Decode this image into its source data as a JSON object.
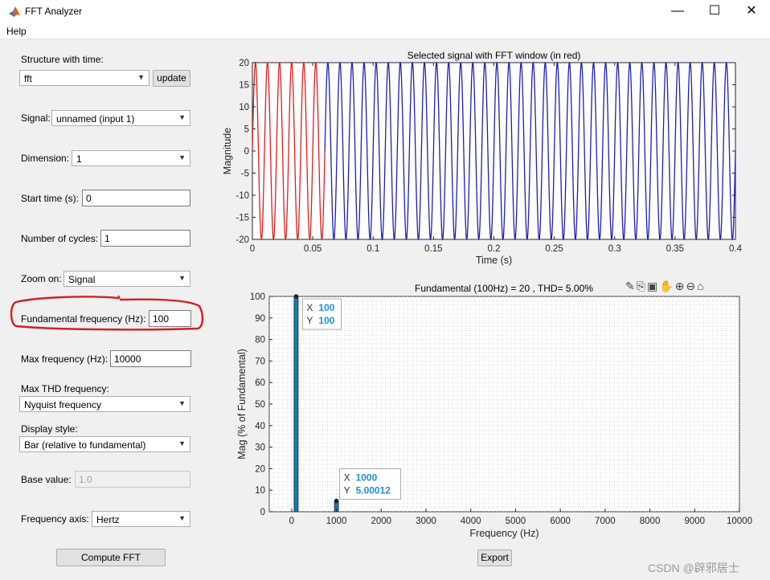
{
  "window": {
    "title": "FFT Analyzer"
  },
  "menu": {
    "help": "Help"
  },
  "panel": {
    "structure_label": "Structure with time:",
    "structure_value": "fft",
    "update_button": "update",
    "signal_label": "Signal:",
    "signal_value": "unnamed (input 1)",
    "dimension_label": "Dimension:",
    "dimension_value": "1",
    "start_time_label": "Start time (s):",
    "start_time_value": "0",
    "cycles_label": "Number of cycles:",
    "cycles_value": "1",
    "zoom_label": "Zoom on:",
    "zoom_value": "Signal",
    "fund_freq_label": "Fundamental frequency (Hz):",
    "fund_freq_value": "100",
    "max_freq_label": "Max frequency (Hz):",
    "max_freq_value": "10000",
    "max_thd_label": "Max THD frequency:",
    "max_thd_value": "Nyquist frequency",
    "display_style_label": "Display style:",
    "display_style_value": "Bar (relative to fundamental)",
    "base_value_label": "Base value:",
    "base_value_value": "1.0",
    "freq_axis_label": "Frequency axis:",
    "freq_axis_value": "Hertz",
    "compute_button": "Compute FFT",
    "export_button": "Export"
  },
  "highlight": {
    "color": "#d42020"
  },
  "watermark": "CSDN @辟邪居士",
  "chart_data": [
    {
      "type": "line",
      "title": "Selected signal with FFT window (in red)",
      "xlabel": "Time (s)",
      "ylabel": "Magnitude",
      "xlim": [
        0,
        0.4
      ],
      "ylim": [
        -20,
        20
      ],
      "xticks": [
        "0",
        "0.05",
        "0.1",
        "0.15",
        "0.2",
        "0.25",
        "0.3",
        "0.35",
        "0.4"
      ],
      "yticks": [
        "-20",
        "-15",
        "-10",
        "-5",
        "0",
        "5",
        "10",
        "15",
        "20"
      ],
      "signal_frequency_hz": 100,
      "amplitude": 20,
      "highlight_window": [
        0,
        0.06
      ],
      "series": [
        {
          "name": "",
          "color": "#dd1f1f",
          "range": [
            0,
            0.06
          ]
        },
        {
          "name": "",
          "color": "#1f1fb4",
          "range": [
            0.06,
            0.4
          ]
        }
      ]
    },
    {
      "type": "bar",
      "title": "Fundamental (100Hz) = 20 , THD= 5.00%",
      "xlabel": "Frequency (Hz)",
      "ylabel": "Mag (% of Fundamental)",
      "xlim": [
        -500,
        10000
      ],
      "ylim": [
        0,
        100
      ],
      "xticks": [
        "0",
        "1000",
        "2000",
        "3000",
        "4000",
        "5000",
        "6000",
        "7000",
        "8000",
        "9000",
        "10000"
      ],
      "yticks": [
        "0",
        "10",
        "20",
        "30",
        "40",
        "50",
        "60",
        "70",
        "80",
        "90",
        "100"
      ],
      "grid": true,
      "bars": [
        {
          "x": 100,
          "y": 100
        },
        {
          "x": 1000,
          "y": 5.00012
        }
      ],
      "datatips": [
        {
          "x": "100",
          "y": "100"
        },
        {
          "x": "1000",
          "y": "5.00012"
        }
      ]
    }
  ]
}
